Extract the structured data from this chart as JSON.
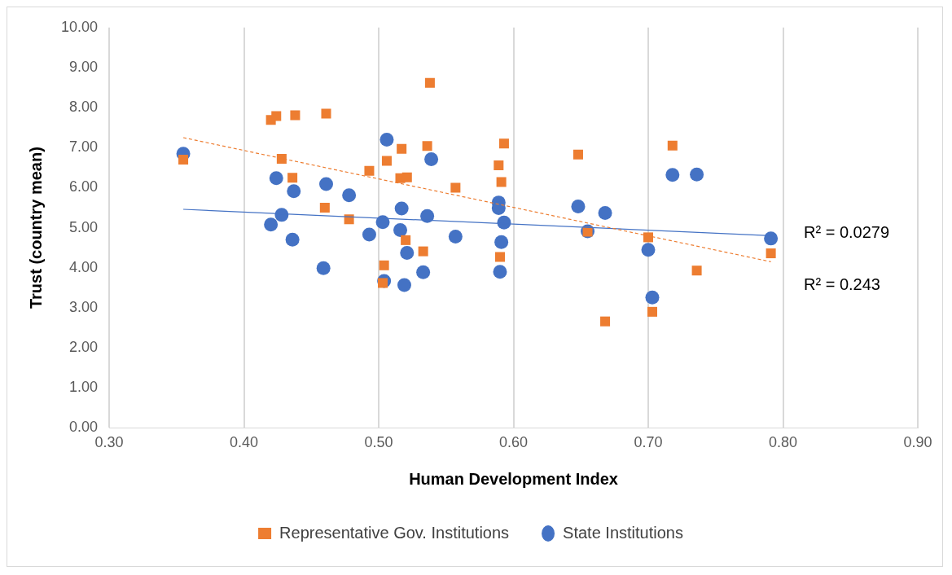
{
  "chart_data": {
    "type": "scatter",
    "xlabel": "Human Development Index",
    "ylabel": "Trust (country mean)",
    "xlim": [
      0.3,
      0.9
    ],
    "xticks": [
      {
        "value": 0.3,
        "label": "0.30"
      },
      {
        "value": 0.4,
        "label": "0.40"
      },
      {
        "value": 0.5,
        "label": "0.50"
      },
      {
        "value": 0.6,
        "label": "0.60"
      },
      {
        "value": 0.7,
        "label": "0.70"
      },
      {
        "value": 0.8,
        "label": "0.80"
      },
      {
        "value": 0.9,
        "label": "0.90"
      }
    ],
    "ylim": [
      0,
      10
    ],
    "yticks": [
      {
        "value": 0,
        "label": "0.00"
      },
      {
        "value": 1,
        "label": "1.00"
      },
      {
        "value": 2,
        "label": "2.00"
      },
      {
        "value": 3,
        "label": "3.00"
      },
      {
        "value": 4,
        "label": "4.00"
      },
      {
        "value": 5,
        "label": "5.00"
      },
      {
        "value": 6,
        "label": "6.00"
      },
      {
        "value": 7,
        "label": "7.00"
      },
      {
        "value": 8,
        "label": "8.00"
      },
      {
        "value": 9,
        "label": "9.00"
      },
      {
        "value": 10,
        "label": "10.00"
      }
    ],
    "grid": "x",
    "legend": "bottom",
    "series": [
      {
        "name": "Representative Gov. Institutions",
        "marker": "square",
        "color": "#ed7d31",
        "x": [
          0.355,
          0.42,
          0.424,
          0.438,
          0.461,
          0.428,
          0.436,
          0.46,
          0.478,
          0.493,
          0.517,
          0.506,
          0.536,
          0.516,
          0.521,
          0.52,
          0.533,
          0.504,
          0.503,
          0.538,
          0.557,
          0.593,
          0.589,
          0.591,
          0.59,
          0.648,
          0.655,
          0.668,
          0.7,
          0.703,
          0.718,
          0.736,
          0.791
        ],
        "values": [
          6.7,
          7.69,
          7.79,
          7.81,
          7.85,
          6.72,
          6.25,
          5.5,
          5.21,
          6.42,
          6.97,
          6.67,
          7.04,
          6.24,
          6.26,
          4.69,
          4.41,
          4.06,
          3.62,
          8.62,
          6.0,
          7.1,
          6.56,
          6.14,
          4.27,
          6.83,
          4.9,
          2.66,
          4.76,
          2.9,
          7.05,
          3.93,
          4.36
        ]
      },
      {
        "name": "State Institutions",
        "marker": "circle",
        "color": "#4472c4",
        "x": [
          0.355,
          0.424,
          0.437,
          0.461,
          0.478,
          0.506,
          0.539,
          0.428,
          0.42,
          0.436,
          0.517,
          0.536,
          0.503,
          0.493,
          0.516,
          0.521,
          0.459,
          0.533,
          0.504,
          0.519,
          0.557,
          0.589,
          0.589,
          0.593,
          0.591,
          0.59,
          0.648,
          0.668,
          0.655,
          0.7,
          0.703,
          0.718,
          0.736,
          0.791
        ],
        "values": [
          6.85,
          6.24,
          5.91,
          6.09,
          5.81,
          7.2,
          6.71,
          5.32,
          5.08,
          4.7,
          5.48,
          5.29,
          5.14,
          4.83,
          4.94,
          4.37,
          3.99,
          3.89,
          3.67,
          3.57,
          4.78,
          5.63,
          5.49,
          5.13,
          4.64,
          3.9,
          5.53,
          5.37,
          4.91,
          4.45,
          3.26,
          6.32,
          6.33,
          4.73
        ]
      },
      {
        "type": "line",
        "color": "#ed7d31",
        "line_style": "dashed",
        "marker": "none",
        "x": [
          0.355,
          0.791
        ],
        "values": [
          7.25,
          4.15
        ]
      },
      {
        "type": "line",
        "color": "#4472c4",
        "line_style": "solid",
        "marker": "none",
        "x": [
          0.355,
          0.791
        ],
        "values": [
          5.46,
          4.8
        ]
      }
    ],
    "annotations": [
      "R² = 0.0279",
      "R² = 0.243"
    ]
  }
}
